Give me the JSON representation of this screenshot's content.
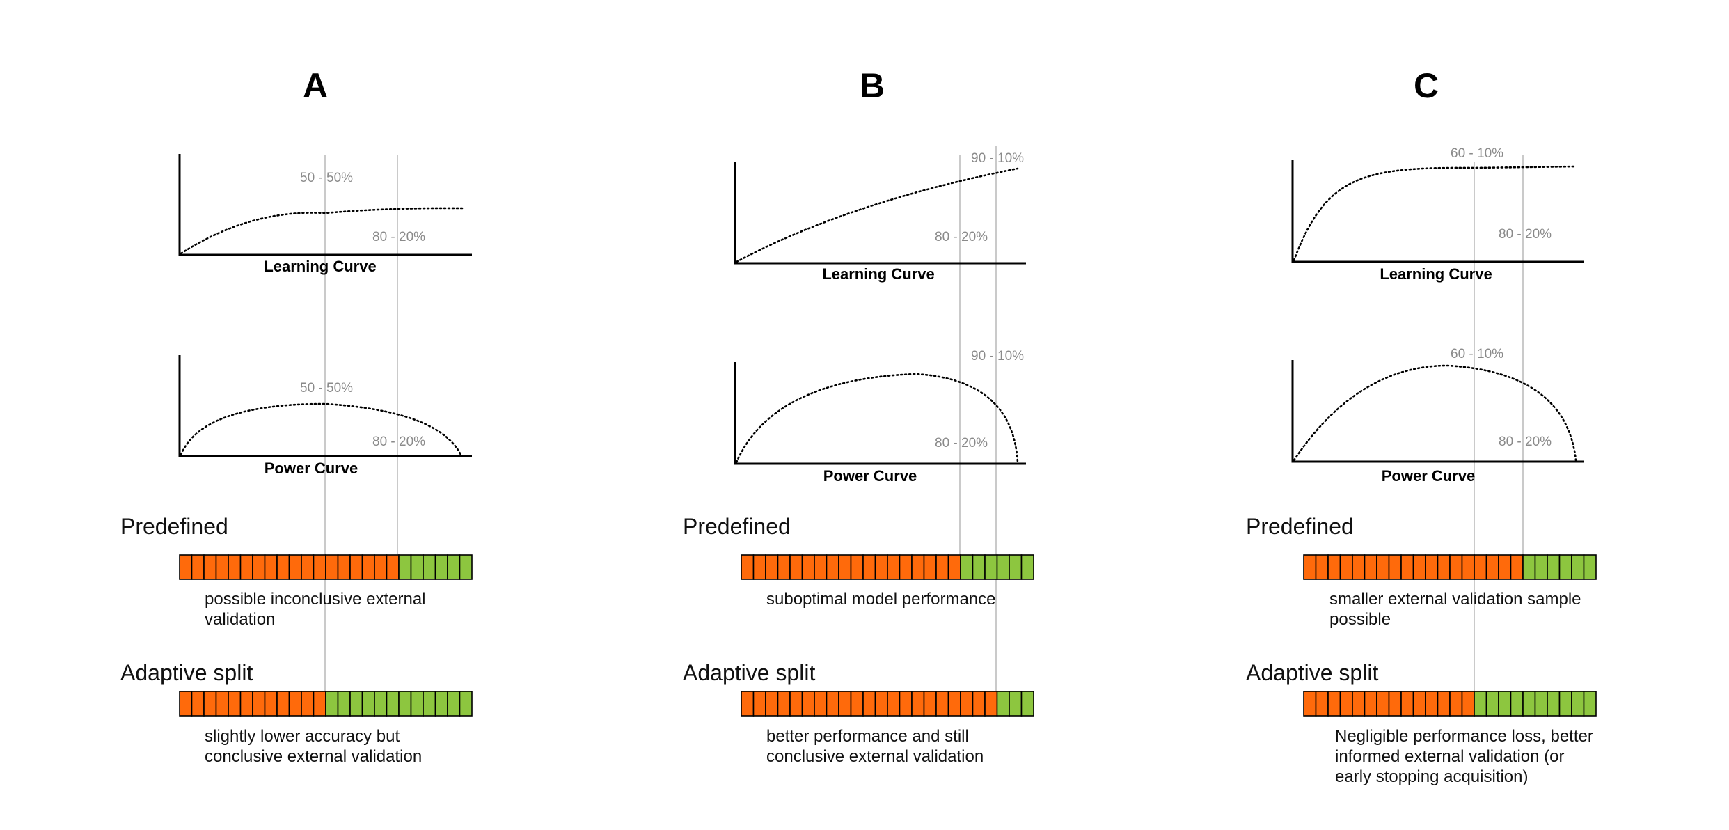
{
  "colors": {
    "train": "#ff6a0b",
    "validation": "#8dc63f",
    "guide": "#b9b9b9",
    "axis": "#000000"
  },
  "panels": [
    {
      "title": "A",
      "learning_curve": {
        "label": "Learning Curve",
        "markers": [
          {
            "label": "50 - 50%"
          },
          {
            "label": "80 - 20%"
          }
        ]
      },
      "power_curve": {
        "label": "Power Curve",
        "markers": [
          {
            "label": "50 - 50%"
          },
          {
            "label": "80 - 20%"
          }
        ]
      },
      "predefined": {
        "label": "Predefined",
        "train_fraction": 0.75,
        "description": [
          "possible inconclusive external",
          "validation"
        ]
      },
      "adaptive": {
        "label": "Adaptive split",
        "train_fraction": 0.5,
        "description": [
          "slightly lower accuracy but",
          "conclusive external validation"
        ]
      }
    },
    {
      "title": "B",
      "learning_curve": {
        "label": "Learning Curve",
        "markers": [
          {
            "label": "90 - 10%"
          },
          {
            "label": "80 - 20%"
          }
        ]
      },
      "power_curve": {
        "label": "Power Curve",
        "markers": [
          {
            "label": "90 - 10%"
          },
          {
            "label": "80 - 20%"
          }
        ]
      },
      "predefined": {
        "label": "Predefined",
        "train_fraction": 0.75,
        "description": [
          "suboptimal model performance"
        ]
      },
      "adaptive": {
        "label": "Adaptive split",
        "train_fraction": 0.875,
        "description": [
          "better performance and still",
          "conclusive external validation"
        ]
      }
    },
    {
      "title": "C",
      "learning_curve": {
        "label": "Learning Curve",
        "markers": [
          {
            "label": "60 - 10%"
          },
          {
            "label": "80 - 20%"
          }
        ]
      },
      "power_curve": {
        "label": "Power Curve",
        "markers": [
          {
            "label": "60 - 10%"
          },
          {
            "label": "80 - 20%"
          }
        ]
      },
      "predefined": {
        "label": "Predefined",
        "train_fraction": 0.75,
        "description": [
          "smaller external validation sample",
          "possible"
        ]
      },
      "adaptive": {
        "label": "Adaptive split",
        "train_fraction": 0.583,
        "description": [
          "Negligible performance loss, better",
          "informed external validation (or",
          "early stopping acquisition)"
        ]
      }
    }
  ]
}
